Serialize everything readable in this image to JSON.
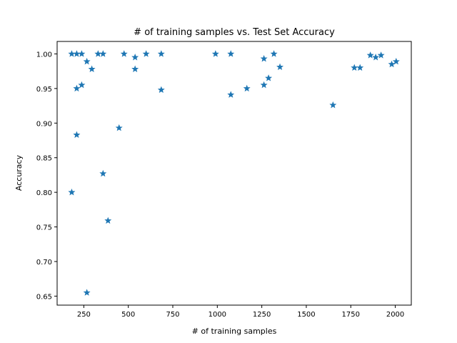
{
  "chart_data": {
    "type": "scatter",
    "title": "# of training samples vs. Test Set Accuracy",
    "xlabel": "# of training samples",
    "ylabel": "Accuracy",
    "xlim": [
      100,
      2090
    ],
    "ylim": [
      0.637,
      1.018
    ],
    "xticks": [
      250,
      500,
      750,
      1000,
      1250,
      1500,
      1750,
      2000
    ],
    "yticks": [
      0.65,
      0.7,
      0.75,
      0.8,
      0.85,
      0.9,
      0.95,
      1.0
    ],
    "ytick_labels": [
      "0.65",
      "0.70",
      "0.75",
      "0.80",
      "0.85",
      "0.90",
      "0.95",
      "1.00"
    ],
    "marker": "star",
    "marker_color": "#1f77b4",
    "grid": false,
    "points": [
      {
        "x": 182,
        "y": 1.0
      },
      {
        "x": 182,
        "y": 0.8
      },
      {
        "x": 210,
        "y": 1.0
      },
      {
        "x": 210,
        "y": 0.95
      },
      {
        "x": 210,
        "y": 0.883
      },
      {
        "x": 238,
        "y": 1.0
      },
      {
        "x": 238,
        "y": 0.955
      },
      {
        "x": 267,
        "y": 0.989
      },
      {
        "x": 267,
        "y": 0.655
      },
      {
        "x": 295,
        "y": 0.978
      },
      {
        "x": 330,
        "y": 1.0
      },
      {
        "x": 358,
        "y": 1.0
      },
      {
        "x": 358,
        "y": 0.827
      },
      {
        "x": 386,
        "y": 0.759
      },
      {
        "x": 448,
        "y": 0.893
      },
      {
        "x": 476,
        "y": 1.0
      },
      {
        "x": 538,
        "y": 0.995
      },
      {
        "x": 538,
        "y": 0.978
      },
      {
        "x": 600,
        "y": 1.0
      },
      {
        "x": 685,
        "y": 1.0
      },
      {
        "x": 685,
        "y": 0.948
      },
      {
        "x": 990,
        "y": 1.0
      },
      {
        "x": 1076,
        "y": 1.0
      },
      {
        "x": 1076,
        "y": 0.941
      },
      {
        "x": 1166,
        "y": 0.95
      },
      {
        "x": 1262,
        "y": 0.993
      },
      {
        "x": 1262,
        "y": 0.955
      },
      {
        "x": 1288,
        "y": 0.965
      },
      {
        "x": 1318,
        "y": 1.0
      },
      {
        "x": 1352,
        "y": 0.981
      },
      {
        "x": 1650,
        "y": 0.926
      },
      {
        "x": 1770,
        "y": 0.98
      },
      {
        "x": 1802,
        "y": 0.98
      },
      {
        "x": 1860,
        "y": 0.998
      },
      {
        "x": 1890,
        "y": 0.995
      },
      {
        "x": 1920,
        "y": 0.998
      },
      {
        "x": 1980,
        "y": 0.985
      },
      {
        "x": 2005,
        "y": 0.989
      }
    ]
  }
}
